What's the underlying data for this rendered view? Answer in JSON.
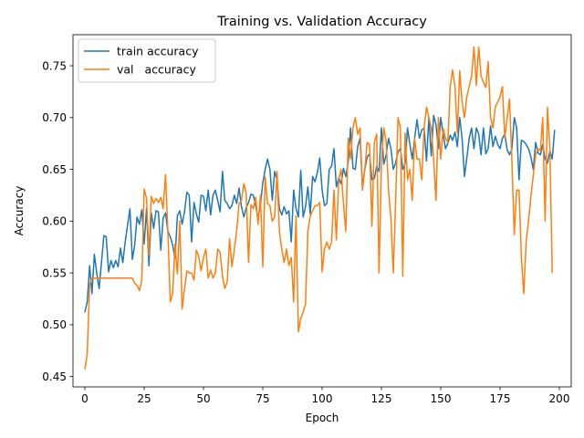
{
  "chart_data": {
    "type": "line",
    "title": "Training vs. Validation Accuracy",
    "xlabel": "Epoch",
    "ylabel": "Accuracy",
    "xlim": [
      -5,
      205
    ],
    "ylim": [
      0.44,
      0.78
    ],
    "xticks": [
      0,
      25,
      50,
      75,
      100,
      125,
      150,
      175,
      200
    ],
    "yticks": [
      0.45,
      0.5,
      0.55,
      0.6,
      0.65,
      0.7,
      0.75
    ],
    "xtick_labels": [
      "0",
      "25",
      "50",
      "75",
      "100",
      "125",
      "150",
      "175",
      "200"
    ],
    "ytick_labels": [
      "0.45",
      "0.50",
      "0.55",
      "0.60",
      "0.65",
      "0.70",
      "0.75"
    ],
    "grid": false,
    "legend": {
      "placement": "top-left",
      "entries": [
        "train accuracy",
        "val   accuracy"
      ]
    },
    "series": [
      {
        "name": "train accuracy",
        "color": "#1f77b4",
        "values": [
          0.512,
          0.522,
          0.557,
          0.53,
          0.568,
          0.55,
          0.535,
          0.56,
          0.586,
          0.585,
          0.551,
          0.562,
          0.555,
          0.562,
          0.556,
          0.574,
          0.56,
          0.58,
          0.596,
          0.612,
          0.563,
          0.577,
          0.604,
          0.597,
          0.611,
          0.578,
          0.612,
          0.557,
          0.608,
          0.593,
          0.61,
          0.609,
          0.572,
          0.603,
          0.608,
          0.59,
          0.585,
          0.577,
          0.564,
          0.605,
          0.61,
          0.597,
          0.609,
          0.628,
          0.625,
          0.58,
          0.618,
          0.607,
          0.599,
          0.625,
          0.624,
          0.61,
          0.63,
          0.606,
          0.625,
          0.63,
          0.62,
          0.609,
          0.648,
          0.62,
          0.617,
          0.612,
          0.615,
          0.625,
          0.617,
          0.632,
          0.614,
          0.604,
          0.613,
          0.618,
          0.626,
          0.625,
          0.615,
          0.603,
          0.616,
          0.637,
          0.65,
          0.66,
          0.65,
          0.62,
          0.648,
          0.64,
          0.612,
          0.606,
          0.614,
          0.607,
          0.61,
          0.58,
          0.63,
          0.612,
          0.604,
          0.649,
          0.604,
          0.614,
          0.633,
          0.607,
          0.643,
          0.638,
          0.647,
          0.661,
          0.63,
          0.615,
          0.617,
          0.65,
          0.653,
          0.67,
          0.633,
          0.642,
          0.636,
          0.651,
          0.643,
          0.657,
          0.69,
          0.651,
          0.65,
          0.672,
          0.68,
          0.633,
          0.65,
          0.662,
          0.665,
          0.64,
          0.641,
          0.653,
          0.648,
          0.69,
          0.655,
          0.664,
          0.68,
          0.67,
          0.65,
          0.656,
          0.667,
          0.67,
          0.65,
          0.656,
          0.69,
          0.674,
          0.66,
          0.68,
          0.698,
          0.68,
          0.688,
          0.69,
          0.658,
          0.7,
          0.663,
          0.702,
          0.693,
          0.67,
          0.7,
          0.684,
          0.67,
          0.675,
          0.683,
          0.678,
          0.686,
          0.672,
          0.7,
          0.68,
          0.643,
          0.661,
          0.68,
          0.69,
          0.67,
          0.69,
          0.684,
          0.664,
          0.69,
          0.665,
          0.67,
          0.692,
          0.672,
          0.682,
          0.674,
          0.67,
          0.68,
          0.684,
          0.669,
          0.664,
          0.67,
          0.7,
          0.69,
          0.64,
          0.678,
          0.677,
          0.674,
          0.67,
          0.662,
          0.65,
          0.676,
          0.666,
          0.664,
          0.674,
          0.66,
          0.656,
          0.668,
          0.66,
          0.688
        ]
      },
      {
        "name": "val   accuracy",
        "color": "#ff7f0e",
        "values": [
          0.457,
          0.472,
          0.539,
          0.545,
          0.545,
          0.545,
          0.545,
          0.545,
          0.545,
          0.545,
          0.545,
          0.545,
          0.545,
          0.545,
          0.545,
          0.545,
          0.545,
          0.545,
          0.545,
          0.545,
          0.545,
          0.54,
          0.538,
          0.533,
          0.543,
          0.631,
          0.622,
          0.567,
          0.624,
          0.617,
          0.622,
          0.618,
          0.623,
          0.612,
          0.645,
          0.59,
          0.522,
          0.53,
          0.578,
          0.549,
          0.6,
          0.515,
          0.535,
          0.552,
          0.55,
          0.55,
          0.543,
          0.572,
          0.566,
          0.552,
          0.565,
          0.573,
          0.545,
          0.553,
          0.545,
          0.55,
          0.573,
          0.57,
          0.547,
          0.535,
          0.541,
          0.583,
          0.556,
          0.573,
          0.591,
          0.617,
          0.62,
          0.636,
          0.627,
          0.56,
          0.616,
          0.612,
          0.623,
          0.597,
          0.625,
          0.556,
          0.643,
          0.617,
          0.615,
          0.6,
          0.604,
          0.648,
          0.59,
          0.573,
          0.56,
          0.573,
          0.557,
          0.565,
          0.522,
          0.605,
          0.493,
          0.506,
          0.512,
          0.52,
          0.59,
          0.605,
          0.61,
          0.615,
          0.615,
          0.618,
          0.551,
          0.573,
          0.58,
          0.573,
          0.58,
          0.63,
          0.582,
          0.64,
          0.65,
          0.617,
          0.59,
          0.68,
          0.66,
          0.69,
          0.7,
          0.684,
          0.69,
          0.63,
          0.65,
          0.676,
          0.674,
          0.595,
          0.676,
          0.684,
          0.55,
          0.655,
          0.69,
          0.677,
          0.63,
          0.603,
          0.55,
          0.62,
          0.7,
          0.69,
          0.547,
          0.685,
          0.64,
          0.65,
          0.62,
          0.68,
          0.66,
          0.66,
          0.64,
          0.69,
          0.71,
          0.7,
          0.69,
          0.66,
          0.62,
          0.7,
          0.66,
          0.69,
          0.68,
          0.676,
          0.73,
          0.746,
          0.73,
          0.685,
          0.745,
          0.715,
          0.7,
          0.72,
          0.73,
          0.74,
          0.768,
          0.731,
          0.768,
          0.74,
          0.734,
          0.729,
          0.754,
          0.7,
          0.69,
          0.71,
          0.715,
          0.72,
          0.73,
          0.68,
          0.7,
          0.718,
          0.657,
          0.587,
          0.63,
          0.63,
          0.565,
          0.53,
          0.58,
          0.6,
          0.624,
          0.644,
          0.664,
          0.67,
          0.668,
          0.7,
          0.6,
          0.71,
          0.67,
          0.55
        ]
      }
    ]
  }
}
